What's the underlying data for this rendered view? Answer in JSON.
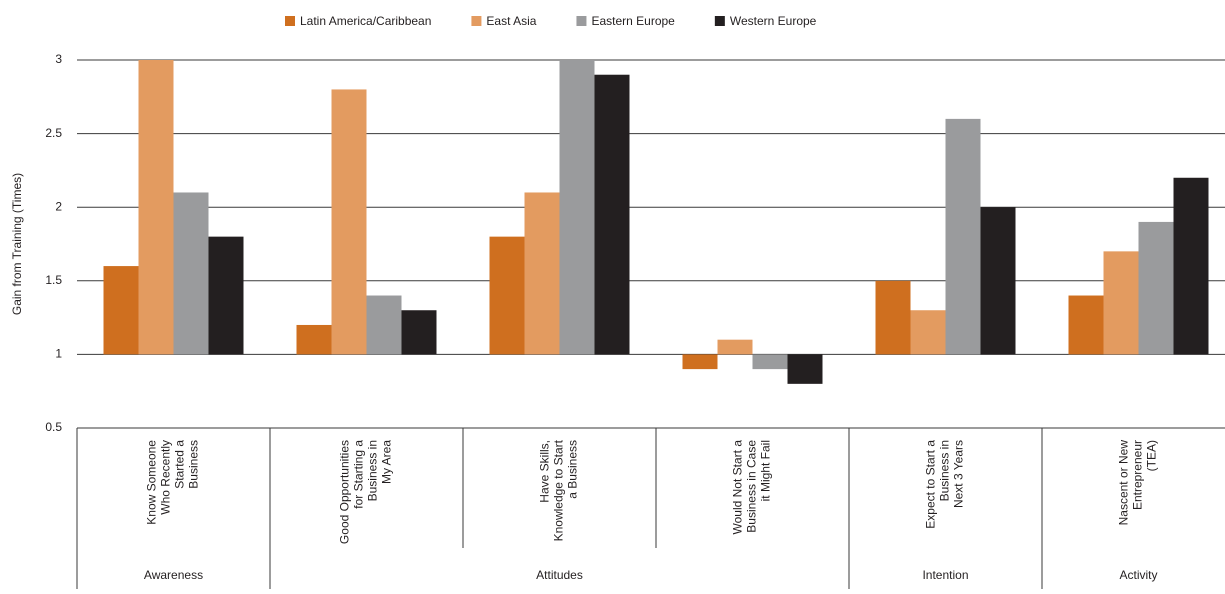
{
  "chart_data": {
    "type": "bar",
    "y_label": "Gain from Training (Times)",
    "categories": [
      "Know Someone\nWho Recently\nStarted a\nBusiness",
      "Good Opportunities\nfor Starting a\nBusiness in\nMy Area",
      "Have Skills,\nKnowledge to Start\na Business",
      "Would Not Start a\nBusiness in Case\nit Might Fail",
      "Expect to Start a\nBusiness in\nNext 3 Years",
      "Nascent or New\nEntrepreneur\n(TEA)"
    ],
    "groups": [
      {
        "name": "Awareness",
        "count": 1
      },
      {
        "name": "Attitudes",
        "count": 3
      },
      {
        "name": "Intention",
        "count": 1
      },
      {
        "name": "Activity",
        "count": 1
      }
    ],
    "series": [
      {
        "name": "Latin America/Caribbean",
        "color": "#cf6f1f",
        "values": [
          1.6,
          1.2,
          1.8,
          0.9,
          1.5,
          1.4
        ]
      },
      {
        "name": "East Asia",
        "color": "#e39b60",
        "values": [
          3.0,
          2.8,
          2.1,
          1.1,
          1.3,
          1.7
        ]
      },
      {
        "name": "Eastern Europe",
        "color": "#9a9b9d",
        "values": [
          2.1,
          1.4,
          3.0,
          0.9,
          2.6,
          1.9
        ]
      },
      {
        "name": "Western Europe",
        "color": "#231f20",
        "values": [
          1.8,
          1.3,
          2.9,
          0.8,
          2.0,
          2.2
        ]
      }
    ],
    "baseline": 1,
    "ylim": [
      0.5,
      3
    ],
    "yticks": [
      0.5,
      1,
      1.5,
      2,
      2.5,
      3
    ],
    "grid": true,
    "legend": "top"
  }
}
